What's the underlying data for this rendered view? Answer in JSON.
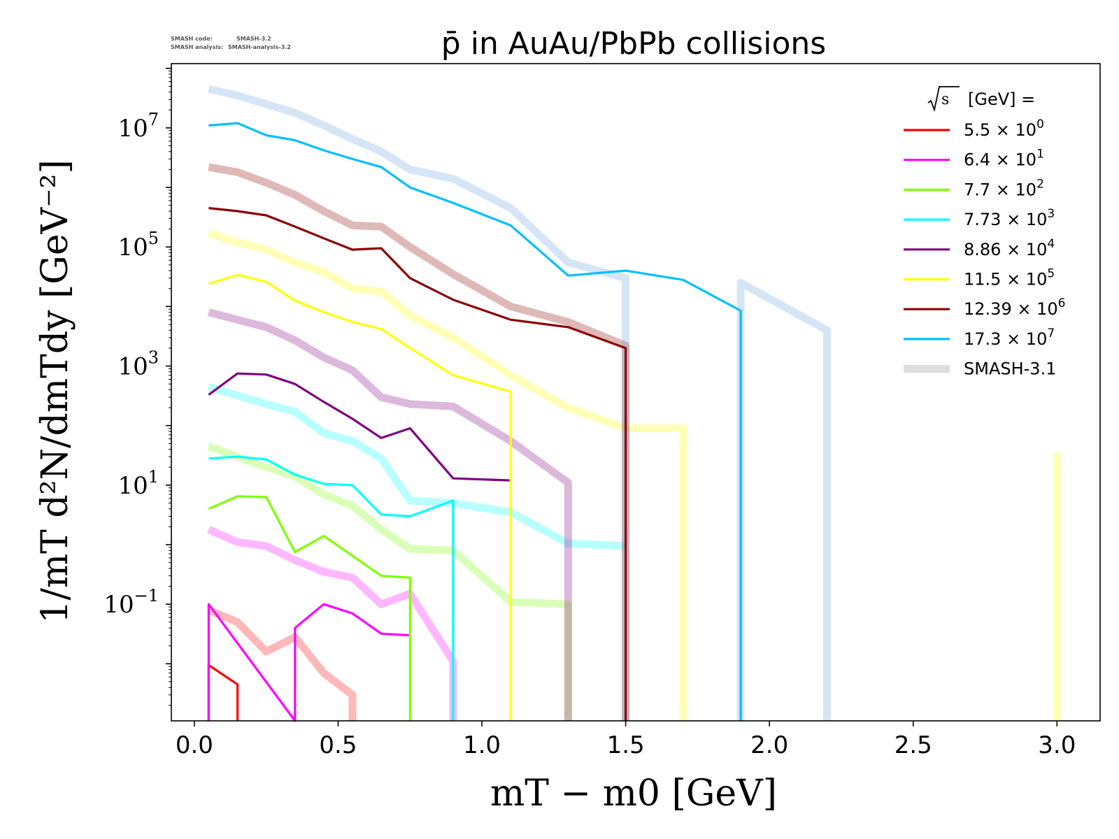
{
  "header": {
    "code_label": "SMASH code:",
    "code_value": "SMASH-3.2",
    "analysis_label": "SMASH analysis:",
    "analysis_value": "SMASH-analysis-3.2"
  },
  "chart_data": {
    "type": "line",
    "title": "p̄ in AuAu/PbPb collisions",
    "xlabel": "mT − m0 [GeV]",
    "ylabel": "1/mT d²N/dmTdy [GeV⁻²]",
    "xlim": [
      -0.08,
      3.15
    ],
    "ylim": [
      0.0011,
      120000000.0
    ],
    "yscale": "log",
    "x_ticks": [
      {
        "value": 0.0,
        "label": "0.0"
      },
      {
        "value": 0.5,
        "label": "0.5"
      },
      {
        "value": 1.0,
        "label": "1.0"
      },
      {
        "value": 1.5,
        "label": "1.5"
      },
      {
        "value": 2.0,
        "label": "2.0"
      },
      {
        "value": 2.5,
        "label": "2.5"
      },
      {
        "value": 3.0,
        "label": "3.0"
      }
    ],
    "y_ticks": [
      {
        "value": 0.1,
        "base": "10",
        "exp": "−1"
      },
      {
        "value": 10,
        "base": "10",
        "exp": "1"
      },
      {
        "value": 1000,
        "base": "10",
        "exp": "3"
      },
      {
        "value": 100000,
        "base": "10",
        "exp": "5"
      },
      {
        "value": 10000000,
        "base": "10",
        "exp": "7"
      }
    ],
    "grid": false,
    "legend_position": "top-right",
    "legend_title": "√s [GeV] =",
    "legend_title_base": "[GeV] =",
    "series": [
      {
        "name": "5.5 × 10⁰",
        "label_base": "5.5 × 10",
        "label_exp": "0",
        "color": "#ff0000",
        "x": [
          0.05,
          0.05,
          0.15,
          0.15
        ],
        "y": [
          0.0011,
          0.0095,
          0.0045,
          0.0011
        ]
      },
      {
        "name": "6.4 × 10¹",
        "label_base": "6.4 × 10",
        "label_exp": "1",
        "color": "#ff00ff",
        "x": [
          0.05,
          0.05,
          0.35,
          0.35,
          0.45,
          0.55,
          0.65,
          0.75
        ],
        "y": [
          0.0011,
          0.1,
          0.0011,
          0.04,
          0.1,
          0.07,
          0.032,
          0.03
        ]
      },
      {
        "name": "7.7 × 10²",
        "label_base": "7.7 × 10",
        "label_exp": "2",
        "color": "#7fff00",
        "x": [
          0.05,
          0.15,
          0.25,
          0.35,
          0.45,
          0.55,
          0.65,
          0.75,
          0.75
        ],
        "y": [
          4.0,
          6.5,
          6.3,
          0.75,
          1.4,
          0.65,
          0.3,
          0.28,
          0.0011
        ]
      },
      {
        "name": "7.73 × 10³",
        "label_base": "7.73 × 10",
        "label_exp": "3",
        "color": "#00ffff",
        "x": [
          0.05,
          0.15,
          0.25,
          0.35,
          0.45,
          0.55,
          0.65,
          0.75,
          0.9,
          0.9
        ],
        "y": [
          28,
          30,
          27,
          15,
          10.5,
          10,
          3.2,
          3.0,
          5.5,
          0.0011
        ]
      },
      {
        "name": "8.86 × 10⁴",
        "label_base": "8.86 × 10",
        "label_exp": "4",
        "color": "#800080",
        "x": [
          0.05,
          0.15,
          0.25,
          0.35,
          0.45,
          0.55,
          0.65,
          0.75,
          0.9,
          1.1
        ],
        "y": [
          330,
          750,
          720,
          500,
          250,
          130,
          62,
          90,
          13,
          12
        ]
      },
      {
        "name": "11.5 × 10⁵",
        "label_base": "11.5 × 10",
        "label_exp": "5",
        "color": "#ffff00",
        "x": [
          0.05,
          0.15,
          0.25,
          0.35,
          0.45,
          0.55,
          0.65,
          0.75,
          0.9,
          1.1,
          1.1
        ],
        "y": [
          24000,
          34000,
          26000,
          12500,
          8000,
          5500,
          4200,
          2000,
          700,
          370,
          0.0011
        ]
      },
      {
        "name": "12.39 × 10⁶",
        "label_base": "12.39 × 10",
        "label_exp": "6",
        "color": "#8b0000",
        "x": [
          0.05,
          0.15,
          0.25,
          0.35,
          0.45,
          0.55,
          0.65,
          0.75,
          0.9,
          1.1,
          1.3,
          1.5,
          1.5
        ],
        "y": [
          450000,
          400000,
          340000,
          220000,
          140000,
          90000,
          95000,
          30000,
          13000,
          6000,
          4500,
          2000,
          0.0011
        ]
      },
      {
        "name": "17.3 × 10⁷",
        "label_base": "17.3 × 10",
        "label_exp": "7",
        "color": "#00bfff",
        "x": [
          0.05,
          0.15,
          0.25,
          0.35,
          0.45,
          0.55,
          0.65,
          0.75,
          0.9,
          1.1,
          1.3,
          1.5,
          1.7,
          1.9,
          1.9
        ],
        "y": [
          11000000,
          12000000,
          7500000,
          6200000,
          4200000,
          3000000,
          2200000,
          1000000,
          550000,
          230000,
          33000,
          40000,
          28000,
          8500,
          0.0011
        ]
      }
    ],
    "reference_name": "SMASH-3.1",
    "reference_legend_color": "#dddddd",
    "reference_series": [
      {
        "color": "#ff0000",
        "x": [
          0.05,
          0.15,
          0.25,
          0.35,
          0.45,
          0.55,
          0.55
        ],
        "y": [
          0.08,
          0.05,
          0.016,
          0.028,
          0.007,
          0.003,
          0.0011
        ]
      },
      {
        "color": "#ff00ff",
        "x": [
          0.05,
          0.15,
          0.25,
          0.35,
          0.45,
          0.55,
          0.65,
          0.75,
          0.9,
          0.9
        ],
        "y": [
          1.8,
          1.1,
          0.95,
          0.55,
          0.35,
          0.28,
          0.1,
          0.15,
          0.011,
          0.0011
        ]
      },
      {
        "color": "#7fff00",
        "x": [
          0.05,
          0.15,
          0.25,
          0.35,
          0.45,
          0.55,
          0.65,
          0.75,
          0.9,
          1.1,
          1.3,
          1.3
        ],
        "y": [
          45,
          30,
          20,
          14,
          7,
          4.5,
          1.8,
          0.85,
          0.8,
          0.11,
          0.1,
          0.0011
        ]
      },
      {
        "color": "#00ffff",
        "x": [
          0.05,
          0.15,
          0.25,
          0.35,
          0.45,
          0.55,
          0.65,
          0.75,
          0.9,
          1.1,
          1.3,
          1.5
        ],
        "y": [
          450,
          320,
          230,
          170,
          75,
          55,
          28,
          5.5,
          5.0,
          3.5,
          1.05,
          0.95
        ]
      },
      {
        "color": "#800080",
        "x": [
          0.05,
          0.15,
          0.25,
          0.35,
          0.45,
          0.55,
          0.65,
          0.75,
          0.9,
          1.1,
          1.3,
          1.3
        ],
        "y": [
          8000,
          6000,
          4500,
          2700,
          1400,
          850,
          300,
          230,
          210,
          55,
          11,
          0.0011
        ]
      },
      {
        "color": "#ffff00",
        "x": [
          0.05,
          0.15,
          0.25,
          0.35,
          0.45,
          0.55,
          0.65,
          0.75,
          0.9,
          1.1,
          1.3,
          1.5,
          1.7,
          1.7
        ],
        "y": [
          170000,
          120000,
          90000,
          55000,
          38000,
          20000,
          18000,
          7000,
          3000,
          700,
          200,
          90,
          90,
          0.0011
        ]
      },
      {
        "color": "#8b0000",
        "x": [
          0.05,
          0.15,
          0.25,
          0.35,
          0.45,
          0.55,
          0.65,
          0.75,
          0.9,
          1.1,
          1.3,
          1.5,
          1.5
        ],
        "y": [
          2200000,
          1800000,
          1200000,
          750000,
          400000,
          230000,
          220000,
          100000,
          35000,
          10000,
          5500,
          2200,
          0.0011
        ]
      },
      {
        "color": "#6ca0dc",
        "x": [
          0.05,
          0.15,
          0.25,
          0.35,
          0.45,
          0.55,
          0.65,
          0.75,
          0.9,
          1.1,
          1.3,
          1.5,
          1.5
        ],
        "y": [
          45000000,
          35000000,
          25000000,
          18000000,
          11000000,
          6500000,
          4000000,
          2000000,
          1400000,
          450000,
          55000,
          30000,
          0.0011
        ]
      },
      {
        "color": "#6ca0dc",
        "x": [
          1.9,
          1.9,
          2.2,
          2.2
        ],
        "y": [
          0.0011,
          25000,
          4000,
          0.0011
        ]
      },
      {
        "color": "#ffff00",
        "x": [
          3.0,
          3.0
        ],
        "y": [
          0.0011,
          35
        ]
      }
    ]
  }
}
